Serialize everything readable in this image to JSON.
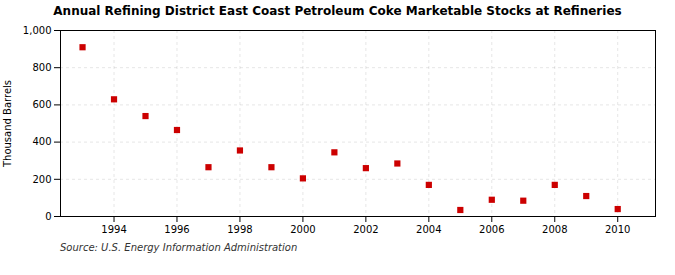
{
  "chart_data": {
    "type": "scatter",
    "title": "Annual Refining District East Coast Petroleum Coke Marketable Stocks at Refineries",
    "ylabel": "Thousand Barrels",
    "annotations": [
      "Source: U.S. Energy Information Administration"
    ],
    "x": [
      1993,
      1994,
      1995,
      1996,
      1997,
      1998,
      1999,
      2000,
      2001,
      2002,
      2003,
      2004,
      2005,
      2006,
      2007,
      2008,
      2009,
      2010
    ],
    "values": [
      910,
      630,
      540,
      465,
      265,
      355,
      265,
      205,
      345,
      260,
      285,
      170,
      35,
      90,
      85,
      170,
      110,
      40
    ],
    "color": "#cc0000",
    "marker": "square",
    "xlim": [
      1992.3,
      2011.2
    ],
    "xticks": [
      1994,
      1996,
      1998,
      2000,
      2002,
      2004,
      2006,
      2008,
      2010
    ],
    "ylim": [
      0,
      1000
    ],
    "yticks": [
      0,
      200,
      400,
      600,
      800,
      {
        "value": 1000,
        "label": "1,000"
      }
    ],
    "grid": true
  }
}
